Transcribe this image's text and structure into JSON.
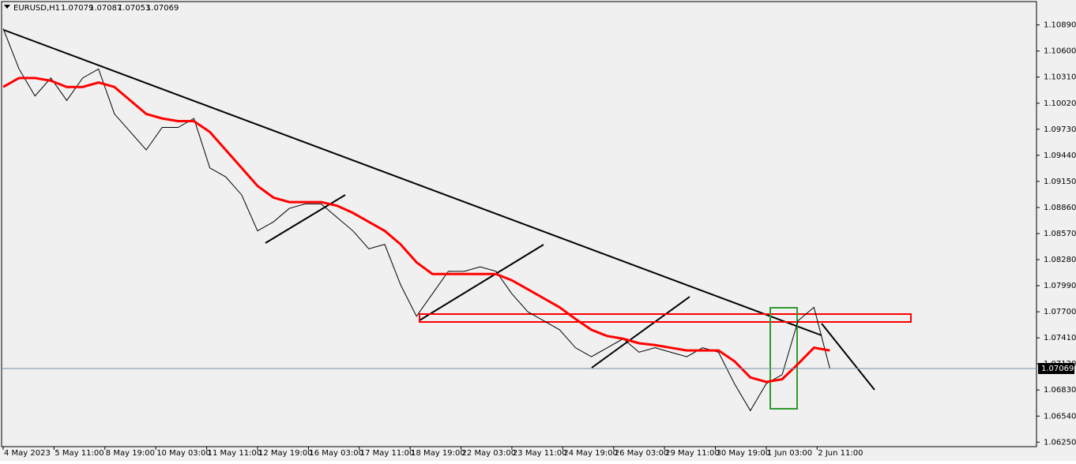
{
  "header": {
    "symbol": "EURUSD,H1",
    "ohlc": [
      1.07079,
      1.07087,
      1.07053,
      1.07069
    ]
  },
  "chart_data": {
    "type": "line",
    "x": [
      0,
      10,
      20,
      30,
      40,
      50,
      60,
      70,
      80,
      90,
      100,
      110,
      120,
      130,
      140,
      150,
      160,
      170,
      180,
      190,
      200,
      210,
      220,
      230,
      240,
      250,
      260,
      270,
      280,
      290,
      300,
      310,
      320,
      330,
      340,
      350,
      360,
      370,
      380,
      390,
      400,
      410,
      420,
      430,
      440,
      450,
      460,
      470,
      480,
      490,
      500,
      510,
      520
    ],
    "series": [
      {
        "color": "#000000",
        "values": [
          1.1085,
          1.104,
          1.101,
          1.103,
          1.1005,
          1.103,
          1.104,
          1.099,
          1.097,
          1.095,
          1.0975,
          1.0975,
          1.0985,
          1.093,
          1.092,
          1.09,
          1.086,
          1.087,
          1.0885,
          1.089,
          1.089,
          1.0875,
          1.086,
          1.084,
          1.0845,
          1.08,
          1.0765,
          1.079,
          1.0815,
          1.0815,
          1.082,
          1.0815,
          1.079,
          1.077,
          1.076,
          1.075,
          1.073,
          1.072,
          1.073,
          1.074,
          1.0725,
          1.073,
          1.0725,
          1.072,
          1.073,
          1.0725,
          1.069,
          1.066,
          1.069,
          1.07,
          1.076,
          1.0775,
          1.0707
        ]
      },
      {
        "color": "#ff0000",
        "values": [
          1.102,
          1.103,
          1.103,
          1.1027,
          1.102,
          1.102,
          1.1025,
          1.102,
          1.1005,
          1.099,
          1.0985,
          1.0982,
          1.0982,
          1.097,
          1.095,
          1.093,
          1.091,
          1.0897,
          1.0892,
          1.0892,
          1.0892,
          1.0888,
          1.088,
          1.087,
          1.086,
          1.0845,
          1.0825,
          1.0812,
          1.0812,
          1.0812,
          1.0812,
          1.0812,
          1.0805,
          1.0795,
          1.0785,
          1.0775,
          1.0762,
          1.075,
          1.0743,
          1.074,
          1.0735,
          1.0733,
          1.073,
          1.0727,
          1.0727,
          1.0727,
          1.0715,
          1.0697,
          1.0692,
          1.0695,
          1.0712,
          1.073,
          1.0727
        ]
      }
    ],
    "last_price": 1.07069,
    "xlim": [
      -1,
      650
    ],
    "ylim": [
      1.062,
      1.1115
    ],
    "xticks": [
      {
        "value": 0,
        "label": "4 May 2023"
      },
      {
        "value": 32,
        "label": "5 May 11:00"
      },
      {
        "value": 64,
        "label": "8 May 19:00"
      },
      {
        "value": 96,
        "label": "10 May 03:00"
      },
      {
        "value": 128,
        "label": "11 May 11:00"
      },
      {
        "value": 160,
        "label": "12 May 19:00"
      },
      {
        "value": 192,
        "label": "16 May 03:00"
      },
      {
        "value": 224,
        "label": "17 May 11:00"
      },
      {
        "value": 256,
        "label": "18 May 19:00"
      },
      {
        "value": 288,
        "label": "22 May 03:00"
      },
      {
        "value": 320,
        "label": "23 May 11:00"
      },
      {
        "value": 352,
        "label": "24 May 19:00"
      },
      {
        "value": 384,
        "label": "26 May 03:00"
      },
      {
        "value": 416,
        "label": "29 May 11:00"
      },
      {
        "value": 448,
        "label": "30 May 19:00"
      },
      {
        "value": 480,
        "label": "1 Jun 03:00"
      },
      {
        "value": 512,
        "label": "2 Jun 11:00"
      }
    ],
    "yticks": [
      {
        "value": 1.1089,
        "label": "1.10890"
      },
      {
        "value": 1.106,
        "label": "1.10600"
      },
      {
        "value": 1.1031,
        "label": "1.10310"
      },
      {
        "value": 1.1002,
        "label": "1.10020"
      },
      {
        "value": 1.0973,
        "label": "1.09730"
      },
      {
        "value": 1.0944,
        "label": "1.09440"
      },
      {
        "value": 1.0915,
        "label": "1.09150"
      },
      {
        "value": 1.0886,
        "label": "1.08860"
      },
      {
        "value": 1.0857,
        "label": "1.08570"
      },
      {
        "value": 1.0828,
        "label": "1.08280"
      },
      {
        "value": 1.0799,
        "label": "1.07990"
      },
      {
        "value": 1.077,
        "label": "1.07700"
      },
      {
        "value": 1.0741,
        "label": "1.07410"
      },
      {
        "value": 1.0712,
        "label": "1.07120"
      },
      {
        "value": 1.0683,
        "label": "1.06830"
      },
      {
        "value": 1.0654,
        "label": "1.06540"
      },
      {
        "value": 1.0625,
        "label": "1.06250"
      }
    ]
  }
}
